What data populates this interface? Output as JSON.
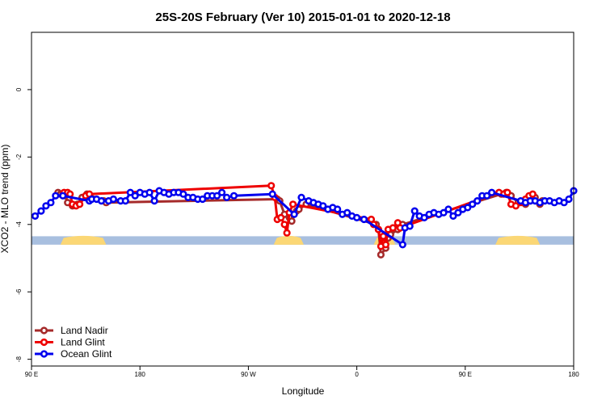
{
  "chart_data": {
    "type": "line",
    "title": "25S-20S February (Ver 10)   2015-01-01 to 2020-12-18",
    "xlabel": "Longitude",
    "ylabel": "XCO2 - MLO trend (ppm)",
    "xlim": [
      90,
      540
    ],
    "ylim": [
      -8.2,
      1.7
    ],
    "xticks": [
      {
        "value": 90,
        "label": "90 E"
      },
      {
        "value": 180,
        "label": "180"
      },
      {
        "value": 270,
        "label": "90 W"
      },
      {
        "value": 360,
        "label": "0"
      },
      {
        "value": 450,
        "label": "90 E"
      },
      {
        "value": 540,
        "label": "180"
      }
    ],
    "yticks": [
      {
        "value": 0,
        "label": "0"
      },
      {
        "value": -2,
        "label": "-2"
      },
      {
        "value": -4,
        "label": "-4"
      },
      {
        "value": -6,
        "label": "-6"
      },
      {
        "value": -8,
        "label": "-8"
      }
    ],
    "grid": false,
    "legend_position": "bottom-left",
    "land_ocean_strip": {
      "y_range": [
        -4.6,
        -4.35
      ],
      "ocean_color": "#a8bfdf",
      "land_color": "#fbd775",
      "land_segments": [
        [
          114,
          152
        ],
        [
          291,
          316
        ],
        [
          374,
          392
        ],
        [
          475,
          512
        ]
      ]
    },
    "series": [
      {
        "name": "Land Nadir",
        "color": "#a52a2a",
        "points": [
          [
            112,
            -3.05
          ],
          [
            114,
            -3.1
          ],
          [
            116,
            -3.1
          ],
          [
            118,
            -3.15
          ],
          [
            120,
            -3.35
          ],
          [
            124,
            -3.45
          ],
          [
            128,
            -3.4
          ],
          [
            132,
            -3.2
          ],
          [
            136,
            -3.1
          ],
          [
            150,
            -3.3
          ],
          [
            152,
            -3.35
          ],
          [
            294,
            -3.25
          ],
          [
            296,
            -3.3
          ],
          [
            300,
            -3.7
          ],
          [
            304,
            -3.8
          ],
          [
            306,
            -3.9
          ],
          [
            310,
            -3.6
          ],
          [
            312,
            -3.55
          ],
          [
            318,
            -3.4
          ],
          [
            376,
            -4.0
          ],
          [
            378,
            -4.15
          ],
          [
            380,
            -4.9
          ],
          [
            384,
            -4.7
          ],
          [
            386,
            -4.4
          ],
          [
            388,
            -4.3
          ],
          [
            394,
            -4.15
          ],
          [
            396,
            -4.05
          ],
          [
            398,
            -4.0
          ],
          [
            480,
            -3.1
          ],
          [
            484,
            -3.05
          ],
          [
            488,
            -3.15
          ],
          [
            494,
            -3.35
          ],
          [
            498,
            -3.35
          ],
          [
            500,
            -3.4
          ],
          [
            504,
            -3.3
          ],
          [
            508,
            -3.2
          ],
          [
            512,
            -3.4
          ],
          [
            514,
            -3.3
          ]
        ]
      },
      {
        "name": "Land Glint",
        "color": "#ee0000",
        "points": [
          [
            117,
            -3.05
          ],
          [
            120,
            -3.05
          ],
          [
            122,
            -3.1
          ],
          [
            124,
            -3.4
          ],
          [
            127,
            -3.45
          ],
          [
            130,
            -3.4
          ],
          [
            135,
            -3.15
          ],
          [
            138,
            -3.1
          ],
          [
            289,
            -2.85
          ],
          [
            292,
            -3.2
          ],
          [
            294,
            -3.85
          ],
          [
            297,
            -3.8
          ],
          [
            300,
            -4.0
          ],
          [
            302,
            -4.25
          ],
          [
            304,
            -3.65
          ],
          [
            307,
            -3.4
          ],
          [
            372,
            -3.85
          ],
          [
            374,
            -4.0
          ],
          [
            378,
            -4.15
          ],
          [
            380,
            -4.65
          ],
          [
            382,
            -4.35
          ],
          [
            384,
            -4.6
          ],
          [
            386,
            -4.15
          ],
          [
            390,
            -4.1
          ],
          [
            394,
            -3.95
          ],
          [
            396,
            -4.1
          ],
          [
            478,
            -3.05
          ],
          [
            482,
            -3.1
          ],
          [
            485,
            -3.05
          ],
          [
            488,
            -3.4
          ],
          [
            492,
            -3.45
          ],
          [
            496,
            -3.35
          ],
          [
            500,
            -3.25
          ],
          [
            503,
            -3.15
          ],
          [
            506,
            -3.1
          ]
        ]
      },
      {
        "name": "Ocean Glint",
        "color": "#0000ee",
        "points": [
          [
            93,
            -3.75
          ],
          [
            98,
            -3.6
          ],
          [
            102,
            -3.45
          ],
          [
            106,
            -3.35
          ],
          [
            110,
            -3.15
          ],
          [
            116,
            -3.15
          ],
          [
            138,
            -3.3
          ],
          [
            140,
            -3.25
          ],
          [
            144,
            -3.25
          ],
          [
            148,
            -3.3
          ],
          [
            154,
            -3.3
          ],
          [
            158,
            -3.25
          ],
          [
            164,
            -3.3
          ],
          [
            168,
            -3.3
          ],
          [
            172,
            -3.05
          ],
          [
            176,
            -3.15
          ],
          [
            180,
            -3.05
          ],
          [
            184,
            -3.1
          ],
          [
            188,
            -3.05
          ],
          [
            192,
            -3.3
          ],
          [
            196,
            -3.0
          ],
          [
            200,
            -3.05
          ],
          [
            204,
            -3.1
          ],
          [
            208,
            -3.05
          ],
          [
            212,
            -3.05
          ],
          [
            216,
            -3.1
          ],
          [
            220,
            -3.2
          ],
          [
            224,
            -3.2
          ],
          [
            228,
            -3.25
          ],
          [
            232,
            -3.25
          ],
          [
            236,
            -3.15
          ],
          [
            240,
            -3.15
          ],
          [
            244,
            -3.15
          ],
          [
            248,
            -3.05
          ],
          [
            252,
            -3.2
          ],
          [
            258,
            -3.15
          ],
          [
            290,
            -3.1
          ],
          [
            308,
            -3.7
          ],
          [
            314,
            -3.2
          ],
          [
            320,
            -3.3
          ],
          [
            324,
            -3.35
          ],
          [
            328,
            -3.4
          ],
          [
            332,
            -3.45
          ],
          [
            336,
            -3.55
          ],
          [
            340,
            -3.5
          ],
          [
            344,
            -3.55
          ],
          [
            348,
            -3.7
          ],
          [
            352,
            -3.65
          ],
          [
            356,
            -3.75
          ],
          [
            360,
            -3.8
          ],
          [
            366,
            -3.85
          ],
          [
            398,
            -4.6
          ],
          [
            400,
            -4.1
          ],
          [
            404,
            -4.05
          ],
          [
            408,
            -3.6
          ],
          [
            412,
            -3.75
          ],
          [
            416,
            -3.8
          ],
          [
            420,
            -3.7
          ],
          [
            424,
            -3.65
          ],
          [
            428,
            -3.7
          ],
          [
            432,
            -3.65
          ],
          [
            436,
            -3.55
          ],
          [
            440,
            -3.75
          ],
          [
            444,
            -3.65
          ],
          [
            448,
            -3.55
          ],
          [
            452,
            -3.5
          ],
          [
            456,
            -3.4
          ],
          [
            460,
            -3.3
          ],
          [
            464,
            -3.15
          ],
          [
            468,
            -3.15
          ],
          [
            472,
            -3.05
          ],
          [
            496,
            -3.3
          ],
          [
            500,
            -3.35
          ],
          [
            504,
            -3.3
          ],
          [
            508,
            -3.3
          ],
          [
            512,
            -3.35
          ],
          [
            516,
            -3.3
          ],
          [
            520,
            -3.3
          ],
          [
            524,
            -3.35
          ],
          [
            528,
            -3.3
          ],
          [
            532,
            -3.35
          ],
          [
            536,
            -3.25
          ],
          [
            540,
            -3.0
          ]
        ]
      }
    ]
  }
}
